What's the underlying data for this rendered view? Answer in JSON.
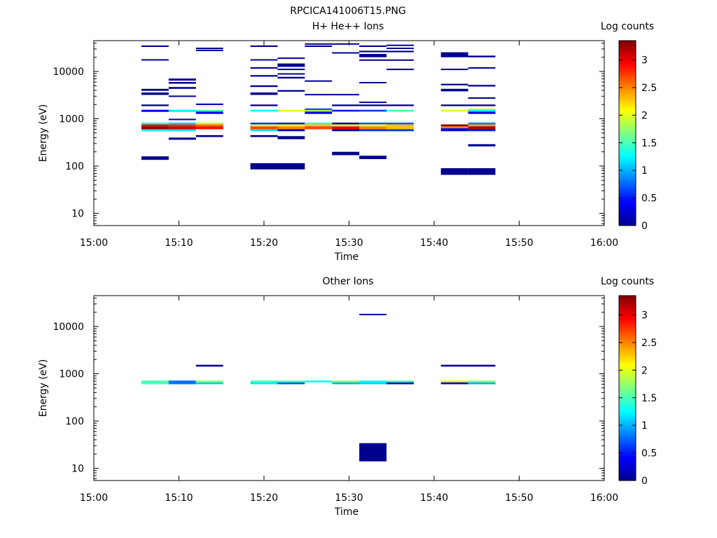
{
  "figure_title": "RPCICA141006T15.PNG",
  "chart_data": [
    {
      "type": "heatmap",
      "title": "H+ He++ Ions",
      "xlabel": "Time",
      "ylabel": "Energy (eV)",
      "x_range": [
        "15:00",
        "16:00"
      ],
      "x_ticks": [
        "15:00",
        "15:10",
        "15:20",
        "15:30",
        "15:40",
        "15:50",
        "16:00"
      ],
      "y_scale": "log",
      "y_range": [
        5.5,
        45000
      ],
      "y_ticks": [
        10,
        100,
        1000,
        10000
      ],
      "y_tick_labels": [
        "10",
        "100",
        "1000",
        "10000"
      ],
      "colorbar": {
        "label": "Log counts",
        "range": [
          0,
          3.35
        ],
        "ticks": [
          0,
          0.5,
          1,
          1.5,
          2,
          2.5,
          3
        ],
        "tick_labels": [
          "0",
          "0.5",
          "1",
          "1.5",
          "2",
          "2.5",
          "3"
        ],
        "colormap": "jet"
      },
      "time_bins": [
        {
          "t0": "15:05.6",
          "t1": "15:08.8"
        },
        {
          "t0": "15:08.8",
          "t1": "15:12.0"
        },
        {
          "t0": "15:12.0",
          "t1": "15:15.2"
        },
        {
          "t0": "15:18.4",
          "t1": "15:21.6"
        },
        {
          "t0": "15:21.6",
          "t1": "15:24.8"
        },
        {
          "t0": "15:24.8",
          "t1": "15:28.0"
        },
        {
          "t0": "15:28.0",
          "t1": "15:31.2"
        },
        {
          "t0": "15:31.2",
          "t1": "15:34.4"
        },
        {
          "t0": "15:34.4",
          "t1": "15:37.6"
        },
        {
          "t0": "15:40.8",
          "t1": "15:44.0"
        },
        {
          "t0": "15:44.0",
          "t1": "15:47.2"
        }
      ],
      "cells": [
        {
          "b": 0,
          "e0": 33000,
          "e1": 35500,
          "v": 0.05
        },
        {
          "b": 0,
          "e0": 17000,
          "e1": 18200,
          "v": 0.05
        },
        {
          "b": 0,
          "e0": 3900,
          "e1": 4300,
          "v": 0.05
        },
        {
          "b": 0,
          "e0": 3200,
          "e1": 3600,
          "v": 0.05
        },
        {
          "b": 0,
          "e0": 1850,
          "e1": 2000,
          "v": 0.05
        },
        {
          "b": 0,
          "e0": 1400,
          "e1": 1550,
          "v": 0.4
        },
        {
          "b": 0,
          "e0": 760,
          "e1": 830,
          "v": 1.4
        },
        {
          "b": 0,
          "e0": 690,
          "e1": 760,
          "v": 3.0
        },
        {
          "b": 0,
          "e0": 600,
          "e1": 690,
          "v": 3.3
        },
        {
          "b": 0,
          "e0": 545,
          "e1": 600,
          "v": 1.3
        },
        {
          "b": 0,
          "e0": 135,
          "e1": 160,
          "v": 0.05
        },
        {
          "b": 1,
          "e0": 6400,
          "e1": 7100,
          "v": 0.05
        },
        {
          "b": 1,
          "e0": 5500,
          "e1": 6000,
          "v": 0.05
        },
        {
          "b": 1,
          "e0": 4300,
          "e1": 4700,
          "v": 0.05
        },
        {
          "b": 1,
          "e0": 2900,
          "e1": 3100,
          "v": 0.05
        },
        {
          "b": 1,
          "e0": 1400,
          "e1": 1550,
          "v": 1.2
        },
        {
          "b": 1,
          "e0": 940,
          "e1": 1000,
          "v": 0.05
        },
        {
          "b": 1,
          "e0": 760,
          "e1": 830,
          "v": 1.1
        },
        {
          "b": 1,
          "e0": 690,
          "e1": 760,
          "v": 2.8
        },
        {
          "b": 1,
          "e0": 600,
          "e1": 690,
          "v": 3.1
        },
        {
          "b": 1,
          "e0": 545,
          "e1": 600,
          "v": 1.2
        },
        {
          "b": 1,
          "e0": 360,
          "e1": 400,
          "v": 0.05
        },
        {
          "b": 2,
          "e0": 30000,
          "e1": 32000,
          "v": 0.05
        },
        {
          "b": 2,
          "e0": 27000,
          "e1": 29000,
          "v": 0.05
        },
        {
          "b": 2,
          "e0": 1950,
          "e1": 2100,
          "v": 0.2
        },
        {
          "b": 2,
          "e0": 1420,
          "e1": 1550,
          "v": 1.5
        },
        {
          "b": 2,
          "e0": 1270,
          "e1": 1420,
          "v": 0.4
        },
        {
          "b": 2,
          "e0": 760,
          "e1": 830,
          "v": 1.9
        },
        {
          "b": 2,
          "e0": 690,
          "e1": 760,
          "v": 2.6
        },
        {
          "b": 2,
          "e0": 600,
          "e1": 690,
          "v": 2.9
        },
        {
          "b": 2,
          "e0": 410,
          "e1": 450,
          "v": 0.05
        },
        {
          "b": 3,
          "e0": 33000,
          "e1": 35500,
          "v": 0.05
        },
        {
          "b": 3,
          "e0": 17000,
          "e1": 18200,
          "v": 0.05
        },
        {
          "b": 3,
          "e0": 11500,
          "e1": 12300,
          "v": 0.05
        },
        {
          "b": 3,
          "e0": 7800,
          "e1": 8400,
          "v": 0.05
        },
        {
          "b": 3,
          "e0": 4700,
          "e1": 5100,
          "v": 0.05
        },
        {
          "b": 3,
          "e0": 3200,
          "e1": 3600,
          "v": 0.05
        },
        {
          "b": 3,
          "e0": 1850,
          "e1": 2000,
          "v": 0.05
        },
        {
          "b": 3,
          "e0": 1420,
          "e1": 1550,
          "v": 1.3
        },
        {
          "b": 3,
          "e0": 760,
          "e1": 830,
          "v": 0.6
        },
        {
          "b": 3,
          "e0": 690,
          "e1": 760,
          "v": 2.0
        },
        {
          "b": 3,
          "e0": 600,
          "e1": 690,
          "v": 2.7
        },
        {
          "b": 3,
          "e0": 545,
          "e1": 600,
          "v": 1.2
        },
        {
          "b": 3,
          "e0": 410,
          "e1": 450,
          "v": 0.05
        },
        {
          "b": 3,
          "e0": 85,
          "e1": 115,
          "v": 0.05
        },
        {
          "b": 4,
          "e0": 18500,
          "e1": 19800,
          "v": 0.05
        },
        {
          "b": 4,
          "e0": 12500,
          "e1": 14800,
          "v": 0.05
        },
        {
          "b": 4,
          "e0": 10700,
          "e1": 11500,
          "v": 0.05
        },
        {
          "b": 4,
          "e0": 8600,
          "e1": 9200,
          "v": 0.05
        },
        {
          "b": 4,
          "e0": 7100,
          "e1": 7700,
          "v": 0.05
        },
        {
          "b": 4,
          "e0": 3750,
          "e1": 4050,
          "v": 0.05
        },
        {
          "b": 4,
          "e0": 1420,
          "e1": 1550,
          "v": 2.0
        },
        {
          "b": 4,
          "e0": 760,
          "e1": 830,
          "v": 0.5
        },
        {
          "b": 4,
          "e0": 690,
          "e1": 760,
          "v": 2.1
        },
        {
          "b": 4,
          "e0": 600,
          "e1": 690,
          "v": 2.5
        },
        {
          "b": 4,
          "e0": 545,
          "e1": 600,
          "v": 0.3
        },
        {
          "b": 4,
          "e0": 370,
          "e1": 430,
          "v": 0.05
        },
        {
          "b": 4,
          "e0": 85,
          "e1": 115,
          "v": 0.05
        },
        {
          "b": 5,
          "e0": 37000,
          "e1": 39500,
          "v": 0.05
        },
        {
          "b": 5,
          "e0": 33000,
          "e1": 35500,
          "v": 0.05
        },
        {
          "b": 5,
          "e0": 6100,
          "e1": 6500,
          "v": 0.05
        },
        {
          "b": 5,
          "e0": 3150,
          "e1": 3350,
          "v": 0.05
        },
        {
          "b": 5,
          "e0": 1550,
          "e1": 1650,
          "v": 0.5
        },
        {
          "b": 5,
          "e0": 1420,
          "e1": 1550,
          "v": 1.8
        },
        {
          "b": 5,
          "e0": 1270,
          "e1": 1420,
          "v": 0.3
        },
        {
          "b": 5,
          "e0": 760,
          "e1": 830,
          "v": 1.4
        },
        {
          "b": 5,
          "e0": 690,
          "e1": 760,
          "v": 2.3
        },
        {
          "b": 5,
          "e0": 600,
          "e1": 690,
          "v": 2.7
        },
        {
          "b": 6,
          "e0": 37000,
          "e1": 39500,
          "v": 0.05
        },
        {
          "b": 6,
          "e0": 24000,
          "e1": 25600,
          "v": 0.05
        },
        {
          "b": 6,
          "e0": 3150,
          "e1": 3350,
          "v": 0.05
        },
        {
          "b": 6,
          "e0": 1850,
          "e1": 2000,
          "v": 0.05
        },
        {
          "b": 6,
          "e0": 1420,
          "e1": 1550,
          "v": 0.5
        },
        {
          "b": 6,
          "e0": 760,
          "e1": 830,
          "v": 0.05
        },
        {
          "b": 6,
          "e0": 690,
          "e1": 760,
          "v": 2.0
        },
        {
          "b": 6,
          "e0": 600,
          "e1": 690,
          "v": 3.0
        },
        {
          "b": 6,
          "e0": 545,
          "e1": 600,
          "v": 0.2
        },
        {
          "b": 6,
          "e0": 170,
          "e1": 200,
          "v": 0.05
        },
        {
          "b": 7,
          "e0": 33000,
          "e1": 35500,
          "v": 0.05
        },
        {
          "b": 7,
          "e0": 25500,
          "e1": 27500,
          "v": 0.05
        },
        {
          "b": 7,
          "e0": 20000,
          "e1": 23500,
          "v": 0.05
        },
        {
          "b": 7,
          "e0": 16800,
          "e1": 18000,
          "v": 0.05
        },
        {
          "b": 7,
          "e0": 5600,
          "e1": 6000,
          "v": 0.05
        },
        {
          "b": 7,
          "e0": 2150,
          "e1": 2300,
          "v": 0.05
        },
        {
          "b": 7,
          "e0": 1850,
          "e1": 2000,
          "v": 0.05
        },
        {
          "b": 7,
          "e0": 1420,
          "e1": 1550,
          "v": 0.6
        },
        {
          "b": 7,
          "e0": 760,
          "e1": 830,
          "v": 0.7
        },
        {
          "b": 7,
          "e0": 690,
          "e1": 760,
          "v": 2.1
        },
        {
          "b": 7,
          "e0": 600,
          "e1": 690,
          "v": 2.5
        },
        {
          "b": 7,
          "e0": 545,
          "e1": 600,
          "v": 0.6
        },
        {
          "b": 7,
          "e0": 140,
          "e1": 165,
          "v": 0.05
        },
        {
          "b": 8,
          "e0": 34500,
          "e1": 37000,
          "v": 0.05
        },
        {
          "b": 8,
          "e0": 30000,
          "e1": 32000,
          "v": 0.05
        },
        {
          "b": 8,
          "e0": 25500,
          "e1": 27500,
          "v": 0.05
        },
        {
          "b": 8,
          "e0": 16800,
          "e1": 18000,
          "v": 0.05
        },
        {
          "b": 8,
          "e0": 10700,
          "e1": 11500,
          "v": 0.05
        },
        {
          "b": 8,
          "e0": 1850,
          "e1": 2000,
          "v": 0.05
        },
        {
          "b": 8,
          "e0": 1420,
          "e1": 1550,
          "v": 1.5
        },
        {
          "b": 8,
          "e0": 760,
          "e1": 830,
          "v": 0.7
        },
        {
          "b": 8,
          "e0": 690,
          "e1": 760,
          "v": 2.3
        },
        {
          "b": 8,
          "e0": 600,
          "e1": 690,
          "v": 2.3
        },
        {
          "b": 8,
          "e0": 545,
          "e1": 600,
          "v": 0.6
        },
        {
          "b": 9,
          "e0": 20000,
          "e1": 25500,
          "v": 0.05
        },
        {
          "b": 9,
          "e0": 10700,
          "e1": 11500,
          "v": 0.05
        },
        {
          "b": 9,
          "e0": 5100,
          "e1": 5500,
          "v": 0.05
        },
        {
          "b": 9,
          "e0": 3800,
          "e1": 4300,
          "v": 0.05
        },
        {
          "b": 9,
          "e0": 1850,
          "e1": 2000,
          "v": 0.05
        },
        {
          "b": 9,
          "e0": 1420,
          "e1": 1550,
          "v": 2.0
        },
        {
          "b": 9,
          "e0": 690,
          "e1": 760,
          "v": 3.3
        },
        {
          "b": 9,
          "e0": 630,
          "e1": 690,
          "v": 2.5
        },
        {
          "b": 9,
          "e0": 545,
          "e1": 630,
          "v": 0.3
        },
        {
          "b": 9,
          "e0": 65,
          "e1": 90,
          "v": 0.05
        },
        {
          "b": 10,
          "e0": 20000,
          "e1": 21700,
          "v": 0.05
        },
        {
          "b": 10,
          "e0": 11500,
          "e1": 12300,
          "v": 0.05
        },
        {
          "b": 10,
          "e0": 4800,
          "e1": 5200,
          "v": 0.05
        },
        {
          "b": 10,
          "e0": 2650,
          "e1": 2850,
          "v": 0.05
        },
        {
          "b": 10,
          "e0": 1850,
          "e1": 2000,
          "v": 0.05
        },
        {
          "b": 10,
          "e0": 1550,
          "e1": 1650,
          "v": 1.9
        },
        {
          "b": 10,
          "e0": 1420,
          "e1": 1550,
          "v": 1.3
        },
        {
          "b": 10,
          "e0": 1270,
          "e1": 1420,
          "v": 0.3
        },
        {
          "b": 10,
          "e0": 760,
          "e1": 830,
          "v": 0.8
        },
        {
          "b": 10,
          "e0": 690,
          "e1": 760,
          "v": 2.4
        },
        {
          "b": 10,
          "e0": 600,
          "e1": 690,
          "v": 3.2
        },
        {
          "b": 10,
          "e0": 545,
          "e1": 600,
          "v": 0.5
        },
        {
          "b": 10,
          "e0": 260,
          "e1": 290,
          "v": 0.05
        },
        {
          "b": 10,
          "e0": 65,
          "e1": 90,
          "v": 0.05
        }
      ]
    },
    {
      "type": "heatmap",
      "title": "Other Ions",
      "xlabel": "Time",
      "ylabel": "Energy (eV)",
      "x_range": [
        "15:00",
        "16:00"
      ],
      "x_ticks": [
        "15:00",
        "15:10",
        "15:20",
        "15:30",
        "15:40",
        "15:50",
        "16:00"
      ],
      "y_scale": "log",
      "y_range": [
        5.5,
        45000
      ],
      "y_ticks": [
        10,
        100,
        1000,
        10000
      ],
      "y_tick_labels": [
        "10",
        "100",
        "1000",
        "10000"
      ],
      "colorbar": {
        "label": "Log counts",
        "range": [
          0,
          3.35
        ],
        "ticks": [
          0,
          0.5,
          1,
          1.5,
          2,
          2.5,
          3
        ],
        "tick_labels": [
          "0",
          "0.5",
          "1",
          "1.5",
          "2",
          "2.5",
          "3"
        ],
        "colormap": "jet"
      },
      "time_bins": [
        {
          "t0": "15:05.6",
          "t1": "15:08.8"
        },
        {
          "t0": "15:08.8",
          "t1": "15:12.0"
        },
        {
          "t0": "15:12.0",
          "t1": "15:15.2"
        },
        {
          "t0": "15:18.4",
          "t1": "15:21.6"
        },
        {
          "t0": "15:21.6",
          "t1": "15:24.8"
        },
        {
          "t0": "15:24.8",
          "t1": "15:28.0"
        },
        {
          "t0": "15:28.0",
          "t1": "15:31.2"
        },
        {
          "t0": "15:31.2",
          "t1": "15:34.4"
        },
        {
          "t0": "15:34.4",
          "t1": "15:37.6"
        },
        {
          "t0": "15:40.8",
          "t1": "15:44.0"
        },
        {
          "t0": "15:44.0",
          "t1": "15:47.2"
        }
      ],
      "cells": [
        {
          "b": 0,
          "e0": 600,
          "e1": 720,
          "v": 1.5
        },
        {
          "b": 1,
          "e0": 600,
          "e1": 720,
          "v": 0.8
        },
        {
          "b": 2,
          "e0": 1420,
          "e1": 1550,
          "v": 0.05
        },
        {
          "b": 2,
          "e0": 655,
          "e1": 720,
          "v": 1.7
        },
        {
          "b": 2,
          "e0": 600,
          "e1": 655,
          "v": 1.1
        },
        {
          "b": 3,
          "e0": 655,
          "e1": 720,
          "v": 1.5
        },
        {
          "b": 3,
          "e0": 600,
          "e1": 655,
          "v": 1.2
        },
        {
          "b": 4,
          "e0": 655,
          "e1": 720,
          "v": 1.5
        },
        {
          "b": 4,
          "e0": 600,
          "e1": 655,
          "v": 0.7
        },
        {
          "b": 5,
          "e0": 655,
          "e1": 720,
          "v": 1.3
        },
        {
          "b": 6,
          "e0": 655,
          "e1": 720,
          "v": 1.7
        },
        {
          "b": 6,
          "e0": 600,
          "e1": 655,
          "v": 1.0
        },
        {
          "b": 7,
          "e0": 17500,
          "e1": 18500,
          "v": 0.05
        },
        {
          "b": 7,
          "e0": 655,
          "e1": 720,
          "v": 1.3
        },
        {
          "b": 7,
          "e0": 600,
          "e1": 655,
          "v": 1.1
        },
        {
          "b": 7,
          "e0": 14,
          "e1": 34,
          "v": 0.05
        },
        {
          "b": 8,
          "e0": 655,
          "e1": 720,
          "v": 1.5
        },
        {
          "b": 8,
          "e0": 600,
          "e1": 655,
          "v": 0.2
        },
        {
          "b": 9,
          "e0": 1420,
          "e1": 1550,
          "v": 0.05
        },
        {
          "b": 9,
          "e0": 655,
          "e1": 720,
          "v": 2.0
        },
        {
          "b": 9,
          "e0": 600,
          "e1": 655,
          "v": 0.3
        },
        {
          "b": 10,
          "e0": 1420,
          "e1": 1550,
          "v": 0.05
        },
        {
          "b": 10,
          "e0": 655,
          "e1": 720,
          "v": 1.7
        },
        {
          "b": 10,
          "e0": 600,
          "e1": 655,
          "v": 1.0
        }
      ]
    }
  ]
}
